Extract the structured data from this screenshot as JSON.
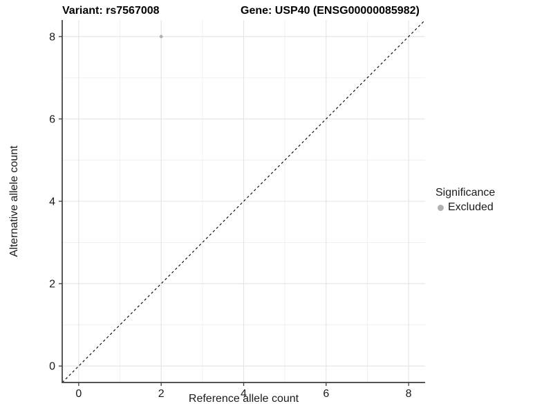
{
  "titles": {
    "variant": "Variant: rs7567008",
    "gene": "Gene: USP40 (ENSG00000085982)"
  },
  "colors": {
    "point_gray": "#b0b0b0",
    "grid_major": "#e3e3e3",
    "grid_minor": "#f0f0f0",
    "axis_line": "#3c3c3c",
    "dashed_line": "#111111",
    "tick_text": "#1a1a1a",
    "background": "#ffffff"
  },
  "legend": {
    "title": "Significance",
    "items": [
      {
        "label": "Excluded",
        "color": "#b0b0b0",
        "marker": "circle"
      }
    ]
  },
  "chart_data": {
    "type": "scatter",
    "title_left": "Variant: rs7567008",
    "title_right": "Gene: USP40 (ENSG00000085982)",
    "xlabel": "Reference allele count",
    "ylabel": "Alternative allele count",
    "xlim": [
      -0.4,
      8.4
    ],
    "ylim": [
      -0.4,
      8.4
    ],
    "x_ticks": [
      0,
      2,
      4,
      6,
      8
    ],
    "y_ticks": [
      0,
      2,
      4,
      6,
      8
    ],
    "x_minor_ticks": [
      1,
      3,
      5,
      7
    ],
    "y_minor_ticks": [
      1,
      3,
      5,
      7
    ],
    "grid": true,
    "legend_position": "right",
    "identity_line": {
      "style": "dashed",
      "slope": 1,
      "intercept": 0
    },
    "series": [
      {
        "name": "Excluded",
        "color": "#b0b0b0",
        "points": [
          [
            2,
            8
          ]
        ]
      }
    ]
  }
}
